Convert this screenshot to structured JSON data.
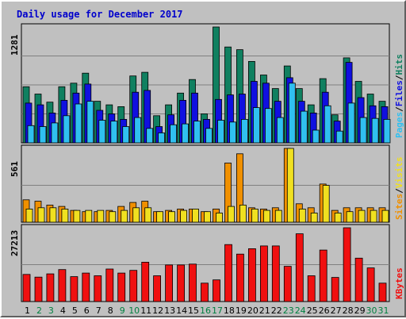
{
  "chart_data": {
    "type": "bar",
    "title": "Daily usage for December 2017",
    "categories": [
      "1",
      "2",
      "3",
      "4",
      "5",
      "6",
      "7",
      "8",
      "9",
      "10",
      "11",
      "12",
      "13",
      "14",
      "15",
      "16",
      "17",
      "18",
      "19",
      "20",
      "21",
      "22",
      "23",
      "24",
      "25",
      "26",
      "27",
      "28",
      "29",
      "30",
      "31"
    ],
    "weekend_days": [
      "2",
      "3",
      "9",
      "10",
      "16",
      "17",
      "23",
      "24",
      "30",
      "31"
    ],
    "panels": [
      {
        "name": "hits-files-pages",
        "ymax_label": "1281",
        "ymax": 1281,
        "series": [
          {
            "name": "Hits",
            "color": "#108060",
            "values": [
              620,
              540,
              450,
              620,
              660,
              770,
              460,
              420,
              400,
              740,
              780,
              300,
              420,
              550,
              700,
              320,
              1281,
              1060,
              1030,
              900,
              750,
              600,
              850,
              600,
              420,
              710,
              310,
              940,
              680,
              540,
              460
            ]
          },
          {
            "name": "Files",
            "color": "#1010e0",
            "values": [
              440,
              420,
              330,
              470,
              550,
              650,
              360,
              320,
              260,
              560,
              580,
              180,
              310,
              470,
              550,
              260,
              480,
              530,
              540,
              680,
              660,
              460,
              720,
              460,
              330,
              560,
              240,
              890,
              500,
              410,
              400
            ]
          },
          {
            "name": "Pages",
            "color": "#30c0f0",
            "values": [
              190,
              180,
              220,
              300,
              430,
              460,
              250,
              240,
              180,
              280,
              160,
              110,
              200,
              210,
              240,
              160,
              250,
              230,
              260,
              390,
              380,
              280,
              660,
              350,
              140,
              410,
              130,
              440,
              280,
              270,
              260
            ]
          }
        ]
      },
      {
        "name": "visits-sites",
        "ymax_label": "561",
        "ymax": 561,
        "series": [
          {
            "name": "Visits",
            "color": "#f09000",
            "values": [
              170,
              160,
              130,
              120,
              90,
              80,
              80,
              90,
              120,
              150,
              160,
              80,
              90,
              100,
              100,
              80,
              100,
              450,
              520,
              110,
              100,
              110,
              561,
              140,
              110,
              290,
              90,
              110,
              110,
              110,
              110
            ]
          },
          {
            "name": "Sites",
            "color": "#f0e020",
            "values": [
              100,
              110,
              110,
              100,
              90,
              90,
              90,
              80,
              90,
              110,
              110,
              80,
              80,
              90,
              100,
              80,
              70,
              120,
              130,
              100,
              90,
              90,
              561,
              100,
              70,
              280,
              70,
              80,
              90,
              90,
              90
            ]
          }
        ]
      },
      {
        "name": "kbytes",
        "ymax_label": "27213",
        "ymax": 27213,
        "series": [
          {
            "name": "KBytes",
            "color": "#f01010",
            "values": [
              10000,
              9000,
              10200,
              11800,
              9200,
              10500,
              9500,
              12000,
              10500,
              11500,
              14500,
              9500,
              13500,
              13500,
              13800,
              6800,
              8000,
              21000,
              17500,
              19500,
              20500,
              20500,
              13000,
              25000,
              9500,
              19000,
              8900,
              27213,
              16000,
              12400,
              6800
            ]
          }
        ]
      }
    ],
    "legend_labels": {
      "pages": "Pages",
      "files": "Files",
      "hits": "Hits",
      "sites": "Sites",
      "visits": "Visits",
      "kbytes": "KBytes"
    },
    "separator": "/",
    "colors": {
      "background": "#c0c0c0",
      "plot_bg": "#c0c0c0",
      "axis_text": "#000000",
      "title": "#0000cc",
      "weekday_tick": "#000000",
      "weekend_tick": "#008040"
    }
  }
}
